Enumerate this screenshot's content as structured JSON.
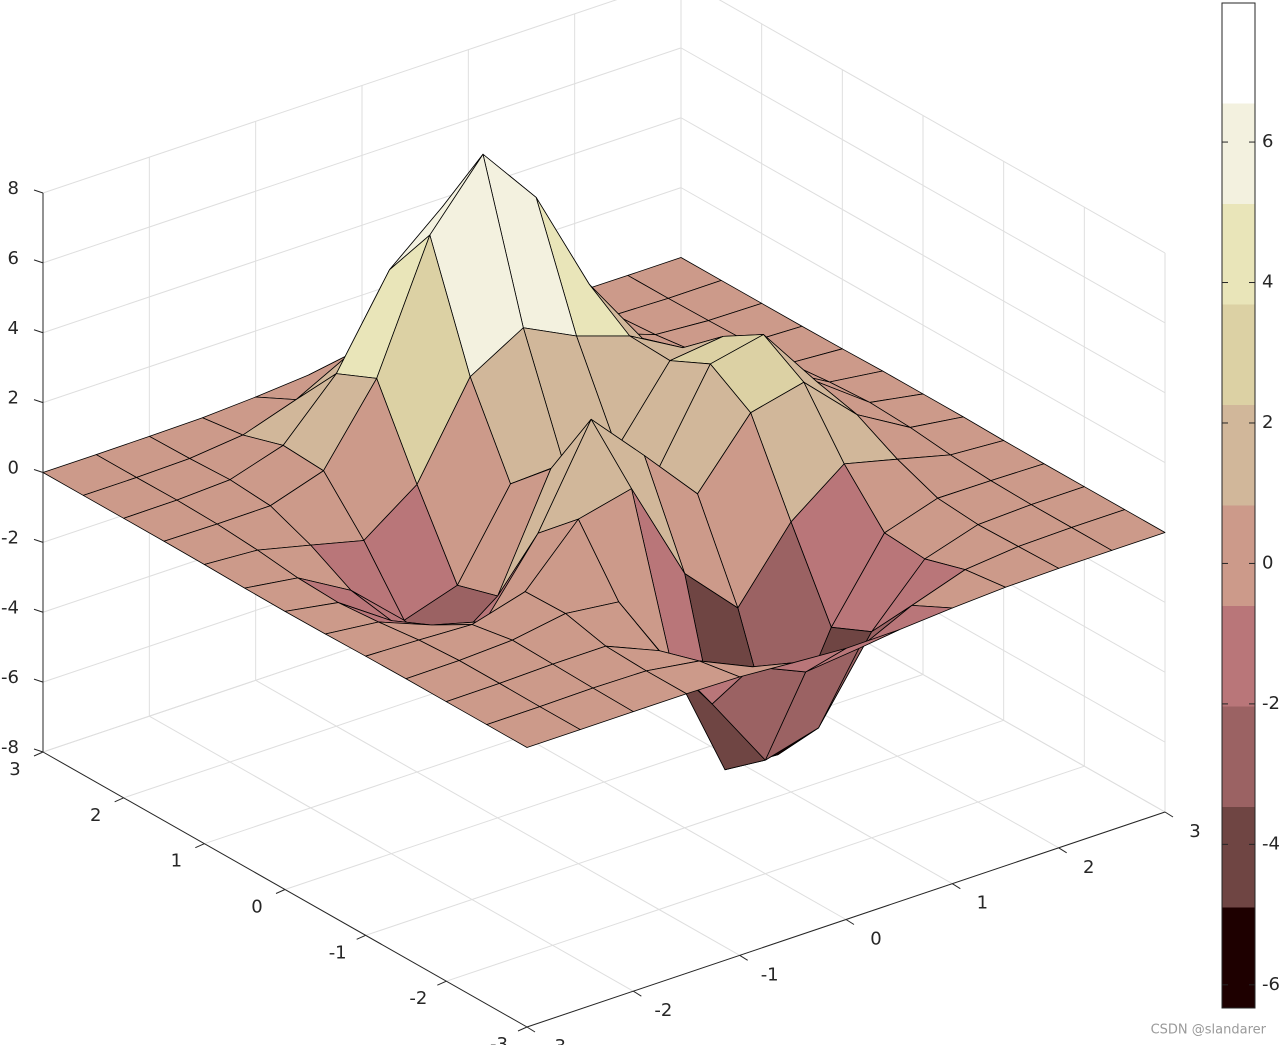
{
  "chart_data": {
    "type": "surface",
    "x": [
      -3,
      -2.5,
      -2,
      -1.5,
      -1,
      -0.5,
      0,
      0.5,
      1,
      1.5,
      2,
      2.5,
      3
    ],
    "y": [
      -3,
      -2.5,
      -2,
      -1.5,
      -1,
      -0.5,
      0,
      0.5,
      1,
      1.5,
      2,
      2.5,
      3
    ],
    "z": [
      [
        0,
        0,
        0,
        0,
        -0.03,
        -0.14,
        -0.24,
        -0.22,
        -0.11,
        -0.03,
        0,
        0,
        0
      ],
      [
        0,
        0,
        0.02,
        0,
        -0.23,
        -0.91,
        -1.57,
        -1.41,
        -0.69,
        -0.18,
        -0.03,
        0,
        0
      ],
      [
        0,
        0.01,
        0.05,
        0.05,
        -0.59,
        -2.63,
        -4.75,
        -4.34,
        -2.1,
        -0.53,
        -0.06,
        0,
        0
      ],
      [
        0,
        0.01,
        0.08,
        0.33,
        0.15,
        -2.19,
        -5.68,
        -5.76,
        -2.63,
        -0.44,
        0.04,
        0.03,
        0
      ],
      [
        -0.01,
        -0.06,
        -0.13,
        0.3,
        1.86,
        2.22,
        -0.72,
        -2.22,
        -0.27,
        0.88,
        0.5,
        0.11,
        0.01
      ],
      [
        -0.03,
        -0.2,
        -0.8,
        -1.21,
        0.8,
        3.55,
        2,
        0.39,
        2.2,
        2.56,
        1.12,
        0.24,
        0.03
      ],
      [
        -0.04,
        -0.3,
        -1.33,
        -2.77,
        -1.65,
        1.48,
        0.98,
        0.38,
        2.94,
        3.27,
        1.41,
        0.3,
        0.03
      ],
      [
        -0.03,
        -0.25,
        -1.12,
        -2.49,
        -2,
        0.39,
        0.46,
        0.38,
        2.38,
        2.56,
        1.09,
        0.23,
        0.03
      ],
      [
        -0.01,
        -0.11,
        -0.48,
        -0.86,
        0.23,
        2.8,
        3.69,
        2.94,
        2.43,
        1.58,
        0.58,
        0.11,
        0.01
      ],
      [
        0,
        -0.02,
        -0.01,
        0.48,
        2.61,
        6.2,
        8,
        6.25,
        3.25,
        1.19,
        0.29,
        0.05,
        0
      ],
      [
        0,
        0.01,
        0.08,
        0.55,
        2.09,
        4.55,
        5.85,
        4.56,
        2.21,
        0.68,
        0.13,
        0.02,
        0
      ],
      [
        0,
        0,
        0.03,
        0.19,
        0.69,
        1.47,
        1.89,
        1.47,
        0.7,
        0.21,
        0.04,
        0,
        0
      ],
      [
        0,
        0,
        0.01,
        0.03,
        0.11,
        0.23,
        0.3,
        0.23,
        0.11,
        0.03,
        0.01,
        0,
        0
      ]
    ],
    "xlim": [
      -3,
      3
    ],
    "ylim": [
      -3,
      3
    ],
    "zlim": [
      -8,
      8
    ],
    "xticks": [
      -3,
      -2,
      -1,
      0,
      1,
      2,
      3
    ],
    "yticks": [
      -3,
      -2,
      -1,
      0,
      1,
      2,
      3
    ],
    "zticks": [
      -8,
      -6,
      -4,
      -2,
      0,
      2,
      4,
      6,
      8
    ],
    "grid": true,
    "edge_color": "#000000",
    "colormap": [
      "#1e0000",
      "#6f4543",
      "#9b6263",
      "#b97679",
      "#cc9a8a",
      "#d1b79a",
      "#dcd1a4",
      "#e9e5b9",
      "#f3f1df",
      "#ffffff"
    ],
    "clim": [
      -6.33,
      7.98
    ],
    "cticks": [
      -6,
      -4,
      -2,
      0,
      2,
      4,
      6
    ]
  },
  "watermark": "CSDN @slandarer"
}
